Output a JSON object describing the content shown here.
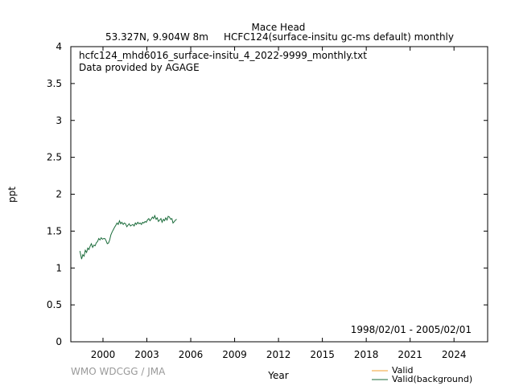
{
  "header": {
    "station": "Mace Head",
    "location": "53.327N, 9.904W 8m",
    "dataset": "HCFC124(surface-insitu gc-ms default) monthly"
  },
  "annotations": {
    "filename": "hcfc124_mhd6016_surface-insitu_4_2022-9999_monthly.txt",
    "provider": "Data provided by AGAGE",
    "period": "1998/02/01 - 2005/02/01"
  },
  "footer": {
    "credit": "WMO WDCGG / JMA"
  },
  "colors": {
    "valid": "#f0a030",
    "background": "#1a6b3a",
    "frame": "#000000",
    "credit": "#9a9a9a"
  },
  "chart_data": {
    "type": "line",
    "xlabel": "Year",
    "ylabel": "ppt",
    "xlim": [
      1997.8,
      2026.3
    ],
    "ylim": [
      0,
      4
    ],
    "x_ticks": [
      2000,
      2003,
      2006,
      2009,
      2012,
      2015,
      2018,
      2021,
      2024
    ],
    "y_ticks": [
      0,
      0.5,
      1,
      1.5,
      2,
      2.5,
      3,
      3.5,
      4
    ],
    "y_tick_labels": [
      "0",
      "0.5",
      "1",
      "1.5",
      "2",
      "2.5",
      "3",
      "3.5",
      "4"
    ],
    "grid": false,
    "legend_position": "bottom-right",
    "series": [
      {
        "name": "Valid",
        "x": [],
        "y": []
      },
      {
        "name": "Valid(background)",
        "x": [
          1998.42,
          1998.54,
          1998.62,
          1998.71,
          1998.79,
          1998.88,
          1998.96,
          1999.04,
          1999.13,
          1999.21,
          1999.29,
          1999.38,
          1999.46,
          1999.54,
          1999.63,
          1999.71,
          1999.79,
          1999.88,
          1999.96,
          2000.04,
          2000.13,
          2000.21,
          2000.29,
          2000.38,
          2000.46,
          2000.54,
          2000.63,
          2000.71,
          2000.79,
          2000.88,
          2000.96,
          2001.04,
          2001.13,
          2001.21,
          2001.29,
          2001.38,
          2001.46,
          2001.54,
          2001.63,
          2001.71,
          2001.79,
          2001.88,
          2001.96,
          2002.04,
          2002.13,
          2002.21,
          2002.29,
          2002.38,
          2002.46,
          2002.54,
          2002.63,
          2002.71,
          2002.79,
          2002.88,
          2002.96,
          2003.04,
          2003.13,
          2003.21,
          2003.29,
          2003.38,
          2003.46,
          2003.54,
          2003.63,
          2003.71,
          2003.79,
          2003.88,
          2003.96,
          2004.04,
          2004.13,
          2004.21,
          2004.29,
          2004.38,
          2004.46,
          2004.54,
          2004.63,
          2004.71,
          2004.79,
          2004.88,
          2004.96,
          2005.04
        ],
        "y": [
          1.23,
          1.12,
          1.18,
          1.16,
          1.24,
          1.21,
          1.27,
          1.25,
          1.3,
          1.33,
          1.28,
          1.31,
          1.3,
          1.34,
          1.36,
          1.4,
          1.38,
          1.41,
          1.39,
          1.4,
          1.4,
          1.37,
          1.33,
          1.34,
          1.38,
          1.45,
          1.49,
          1.52,
          1.55,
          1.58,
          1.61,
          1.59,
          1.64,
          1.6,
          1.62,
          1.59,
          1.61,
          1.6,
          1.56,
          1.58,
          1.6,
          1.57,
          1.58,
          1.59,
          1.57,
          1.61,
          1.59,
          1.62,
          1.6,
          1.61,
          1.59,
          1.62,
          1.61,
          1.63,
          1.62,
          1.65,
          1.67,
          1.64,
          1.66,
          1.69,
          1.67,
          1.71,
          1.66,
          1.68,
          1.63,
          1.65,
          1.67,
          1.62,
          1.66,
          1.64,
          1.68,
          1.65,
          1.7,
          1.69,
          1.66,
          1.67,
          1.61,
          1.63,
          1.65,
          1.66
        ]
      }
    ]
  }
}
